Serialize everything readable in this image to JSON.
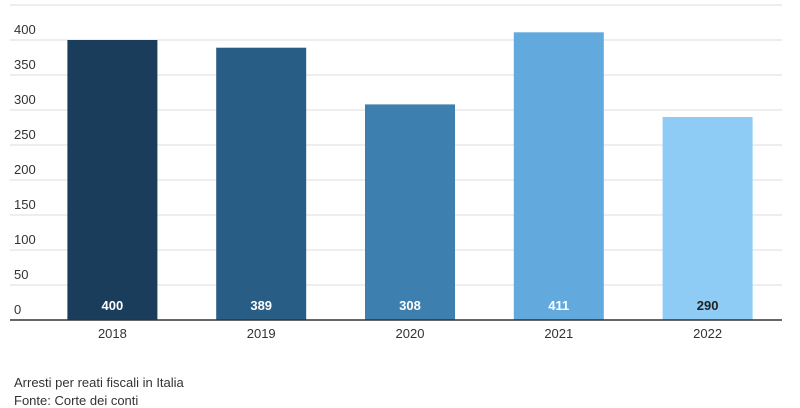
{
  "chart_data": {
    "type": "bar",
    "categories": [
      "2018",
      "2019",
      "2020",
      "2021",
      "2022"
    ],
    "values": [
      400,
      389,
      308,
      411,
      290
    ],
    "colors": [
      "#1b3d5c",
      "#285e85",
      "#3d7fae",
      "#62a9de",
      "#8ecbf5"
    ],
    "ylim": [
      0,
      450
    ],
    "yticks": [
      0,
      50,
      100,
      150,
      200,
      250,
      300,
      350,
      400
    ],
    "grid": true,
    "caption": "Arresti per reati fiscali in Italia",
    "source": "Fonte: Corte dei conti"
  }
}
